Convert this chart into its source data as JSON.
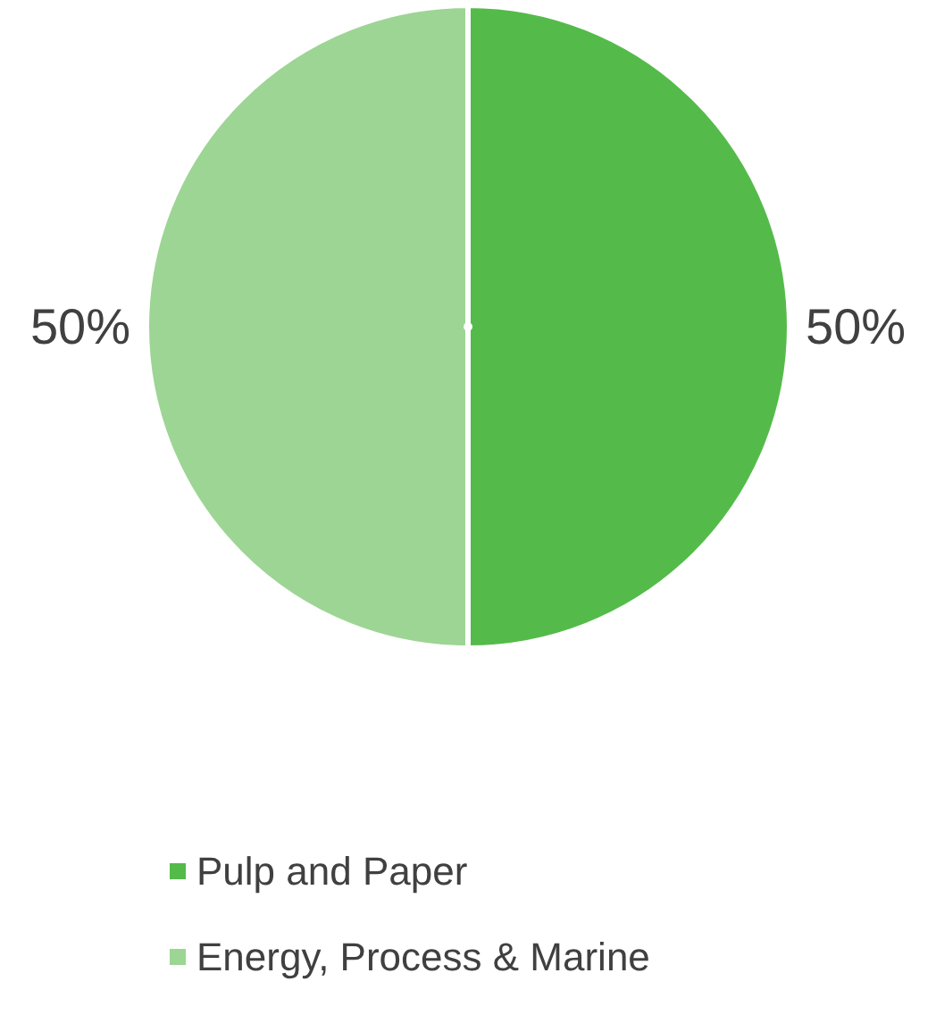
{
  "chart_data": {
    "type": "pie",
    "categories": [
      "Pulp and Paper",
      "Energy, Process & Marine"
    ],
    "values": [
      50,
      50
    ],
    "colors": [
      "#54bb4a",
      "#9dd594"
    ],
    "value_labels": [
      "50%",
      "50%"
    ],
    "legend": "bottom"
  }
}
